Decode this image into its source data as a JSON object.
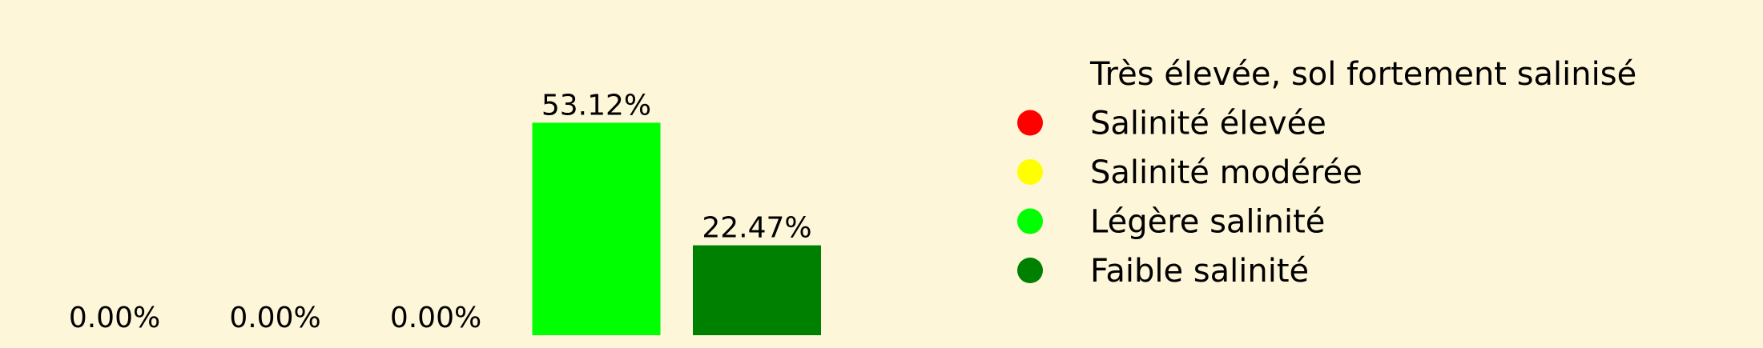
{
  "chart_data": {
    "type": "bar",
    "categories": [
      "Très élevée, sol fortement salinisé",
      "Salinité élevée",
      "Salinité modérée",
      "Légère salinité",
      "Faible salinité"
    ],
    "values": [
      0.0,
      0.0,
      0.0,
      53.12,
      22.47
    ],
    "data_labels": [
      "0.00%",
      "0.00%",
      "0.00%",
      "53.12%",
      "22.47%"
    ],
    "colors": [
      "#fdf6d8",
      "#ff0000",
      "#ffff00",
      "#00ff00",
      "#008000"
    ],
    "ylim": [
      0,
      60
    ],
    "legend": {
      "placement": "right",
      "entries": [
        "Très élevée, sol fortement salinisé",
        "Salinité élevée",
        "Salinité modérée",
        "Légère salinité",
        "Faible salinité"
      ]
    },
    "grid": false,
    "title": "",
    "xlabel": "",
    "ylabel": ""
  }
}
